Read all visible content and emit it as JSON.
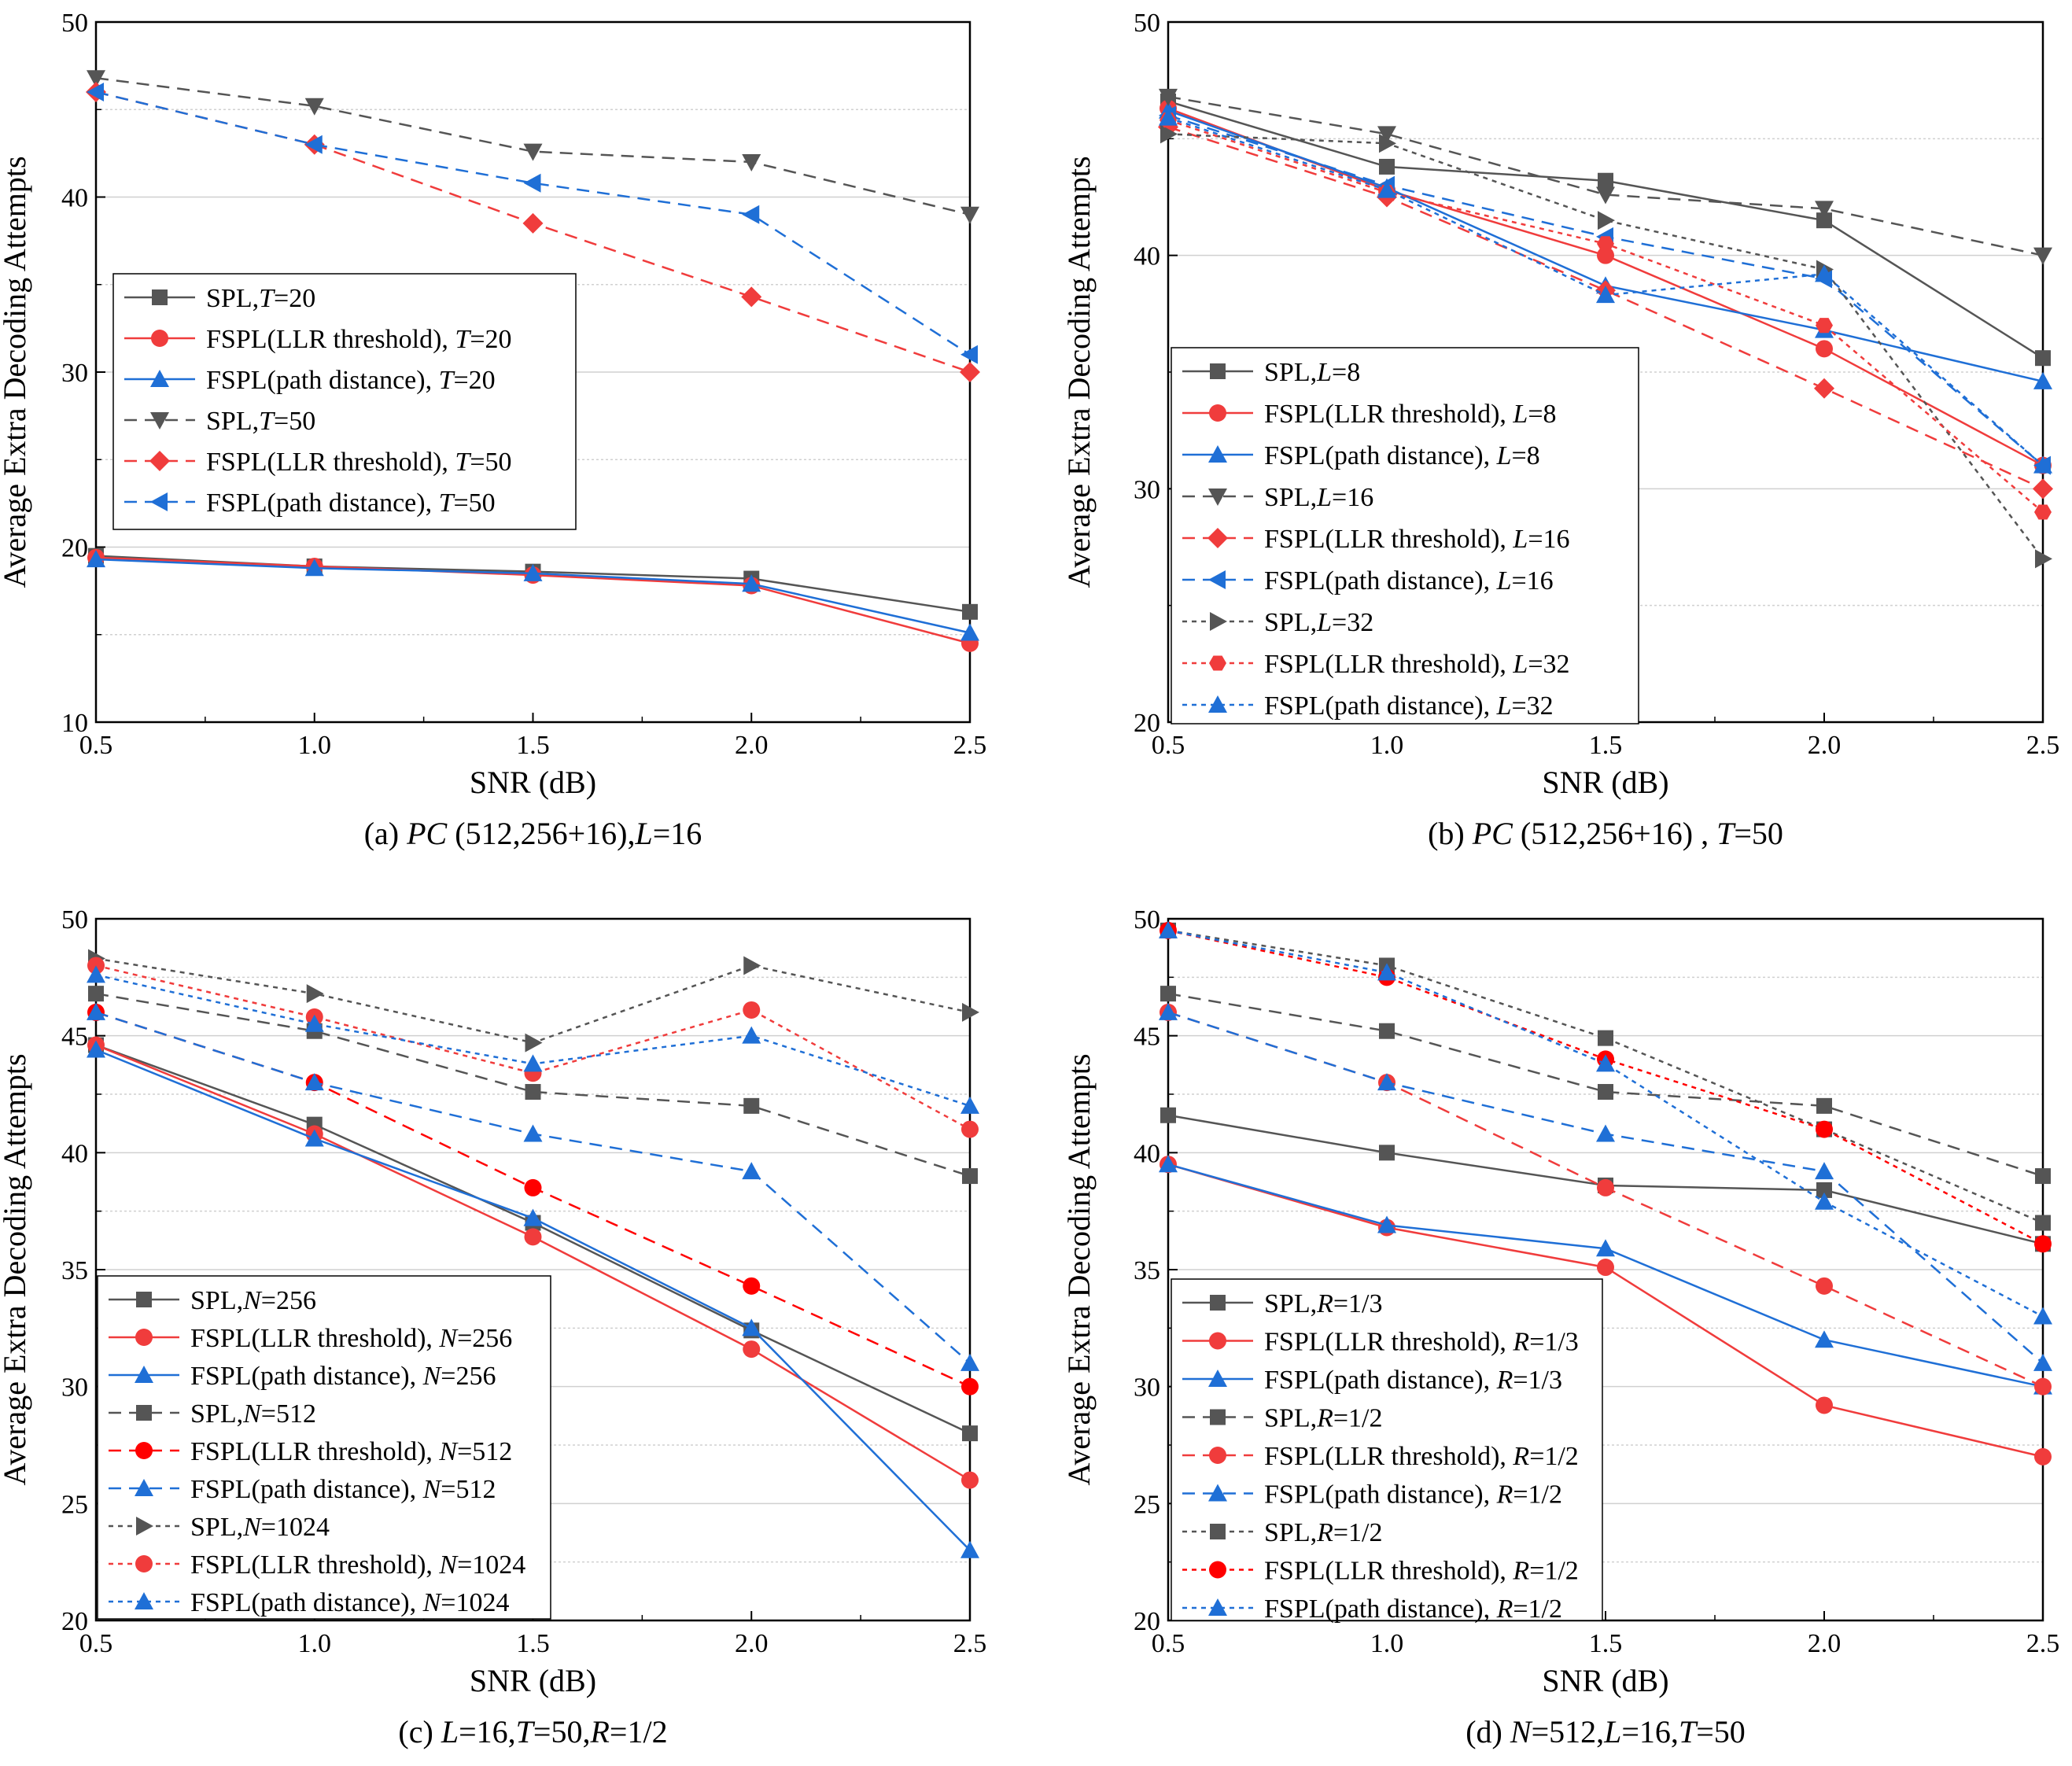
{
  "chart_data": [
    {
      "type": "line",
      "panel": "a",
      "caption": "(a)  PC (512,256+16),L=16",
      "xlabel": "SNR (dB)",
      "ylabel": "Average Extra Decoding Attempts",
      "x": [
        0.5,
        1.0,
        1.5,
        2.0,
        2.5
      ],
      "xlim": [
        0.5,
        2.5
      ],
      "ylim": [
        10,
        50
      ],
      "yticks": [
        10,
        20,
        30,
        40,
        50
      ],
      "xticks": [
        "0.5",
        "1.0",
        "1.5",
        "2.0",
        "2.5"
      ],
      "legend_position": "middle-left",
      "series": [
        {
          "name": "SPL,T=20",
          "color": "#555555",
          "marker": "square",
          "dash": "solid",
          "values": [
            19.5,
            18.9,
            18.6,
            18.2,
            16.3
          ]
        },
        {
          "name": "FSPL(LLR threshold), T=20",
          "color": "#f03c3c",
          "marker": "circle",
          "dash": "solid",
          "values": [
            19.4,
            18.9,
            18.4,
            17.8,
            14.5
          ]
        },
        {
          "name": "FSPL(path distance), T=20",
          "color": "#1f6fd6",
          "marker": "triangle-up",
          "dash": "solid",
          "values": [
            19.3,
            18.8,
            18.5,
            17.9,
            15.1
          ]
        },
        {
          "name": "SPL,T=50",
          "color": "#555555",
          "marker": "triangle-down",
          "dash": "dashed",
          "values": [
            46.8,
            45.2,
            42.6,
            42.0,
            39.0
          ]
        },
        {
          "name": "FSPL(LLR threshold), T=50",
          "color": "#f03c3c",
          "marker": "diamond",
          "dash": "dashed",
          "values": [
            46.0,
            43.0,
            38.5,
            34.3,
            30.0
          ]
        },
        {
          "name": "FSPL(path distance), T=50",
          "color": "#1f6fd6",
          "marker": "triangle-left",
          "dash": "dashed",
          "values": [
            46.0,
            43.0,
            40.8,
            39.0,
            31.0
          ]
        }
      ]
    },
    {
      "type": "line",
      "panel": "b",
      "caption": "(b)  PC (512,256+16) ,  T=50",
      "xlabel": "SNR (dB)",
      "ylabel": "Average Extra Decoding Attempts",
      "x": [
        0.5,
        1.0,
        1.5,
        2.0,
        2.5
      ],
      "xlim": [
        0.5,
        2.5
      ],
      "ylim": [
        20,
        50
      ],
      "yticks": [
        20,
        30,
        40,
        50
      ],
      "xticks": [
        "0.5",
        "1.0",
        "1.5",
        "2.0",
        "2.5"
      ],
      "legend_position": "bottom-left",
      "series": [
        {
          "name": "SPL,L=8",
          "color": "#555555",
          "marker": "square",
          "dash": "solid",
          "values": [
            46.6,
            43.8,
            43.2,
            41.5,
            35.6
          ]
        },
        {
          "name": "FSPL(LLR threshold), L=8",
          "color": "#f03c3c",
          "marker": "circle",
          "dash": "solid",
          "values": [
            46.3,
            42.8,
            40.0,
            36.0,
            31.0
          ]
        },
        {
          "name": "FSPL(path distance), L=8",
          "color": "#1f6fd6",
          "marker": "triangle-up",
          "dash": "solid",
          "values": [
            46.2,
            42.9,
            38.7,
            36.8,
            34.6
          ]
        },
        {
          "name": "SPL,L=16",
          "color": "#555555",
          "marker": "triangle-down",
          "dash": "dashed",
          "values": [
            46.8,
            45.2,
            42.6,
            42.0,
            40.0
          ]
        },
        {
          "name": "FSPL(LLR threshold), L=16",
          "color": "#f03c3c",
          "marker": "diamond",
          "dash": "dashed",
          "values": [
            45.5,
            42.5,
            38.5,
            34.3,
            30.0
          ]
        },
        {
          "name": "FSPL(path distance), L=16",
          "color": "#1f6fd6",
          "marker": "triangle-left",
          "dash": "dashed",
          "values": [
            46.0,
            43.0,
            40.8,
            39.0,
            31.0
          ]
        },
        {
          "name": "SPL,L=32",
          "color": "#555555",
          "marker": "triangle-right",
          "dash": "dotted",
          "values": [
            45.2,
            44.8,
            41.5,
            39.4,
            27.0
          ]
        },
        {
          "name": "FSPL(LLR threshold), L=32",
          "color": "#f03c3c",
          "marker": "hexagon",
          "dash": "dotted",
          "values": [
            45.8,
            42.7,
            40.5,
            37.0,
            29.0
          ]
        },
        {
          "name": "FSPL(path distance), L=32",
          "color": "#1f6fd6",
          "marker": "triangle-up",
          "dash": "dotted",
          "values": [
            45.9,
            42.8,
            38.3,
            39.2,
            31.0
          ]
        }
      ]
    },
    {
      "type": "line",
      "panel": "c",
      "caption": "(c) L=16,T=50,R=1/2",
      "xlabel": "SNR (dB)",
      "ylabel": "Average Extra Decoding Attempts",
      "x": [
        0.5,
        1.0,
        1.5,
        2.0,
        2.5
      ],
      "xlim": [
        0.5,
        2.5
      ],
      "ylim": [
        20,
        50
      ],
      "yticks": [
        20,
        25,
        30,
        35,
        40,
        45,
        50
      ],
      "xticks": [
        "0.5",
        "1.0",
        "1.5",
        "2.0",
        "2.5"
      ],
      "legend_position": "bottom-left",
      "series": [
        {
          "name": "SPL,N=256",
          "color": "#555555",
          "marker": "square",
          "dash": "solid",
          "values": [
            44.6,
            41.2,
            37.0,
            32.4,
            28.0
          ]
        },
        {
          "name": "FSPL(LLR threshold), N=256",
          "color": "#f03c3c",
          "marker": "circle",
          "dash": "solid",
          "values": [
            44.6,
            40.8,
            36.4,
            31.6,
            26.0
          ]
        },
        {
          "name": "FSPL(path distance), N=256",
          "color": "#1f6fd6",
          "marker": "triangle-up",
          "dash": "solid",
          "values": [
            44.4,
            40.6,
            37.2,
            32.5,
            23.0
          ]
        },
        {
          "name": "SPL,N=512",
          "color": "#555555",
          "marker": "square",
          "dash": "dashed",
          "values": [
            46.8,
            45.2,
            42.6,
            42.0,
            39.0
          ]
        },
        {
          "name": "FSPL(LLR threshold), N=512",
          "color": "#ff0000",
          "marker": "circle",
          "dash": "dashed",
          "values": [
            46.0,
            43.0,
            38.5,
            34.3,
            30.0
          ]
        },
        {
          "name": "FSPL(path distance), N=512",
          "color": "#1f6fd6",
          "marker": "triangle-up",
          "dash": "dashed",
          "values": [
            46.0,
            43.0,
            40.8,
            39.2,
            31.0
          ]
        },
        {
          "name": "SPL,N=1024",
          "color": "#555555",
          "marker": "triangle-right",
          "dash": "dotted",
          "values": [
            48.3,
            46.8,
            44.7,
            48.0,
            46.0
          ]
        },
        {
          "name": "FSPL(LLR threshold), N=1024",
          "color": "#f03c3c",
          "marker": "circle",
          "dash": "dotted",
          "values": [
            48.0,
            45.8,
            43.4,
            46.1,
            41.0
          ]
        },
        {
          "name": "FSPL(path distance), N=1024",
          "color": "#1f6fd6",
          "marker": "triangle-up",
          "dash": "dotted",
          "values": [
            47.6,
            45.5,
            43.8,
            45.0,
            42.0
          ]
        }
      ]
    },
    {
      "type": "line",
      "panel": "d",
      "caption": "(d) N=512,L=16,T=50",
      "xlabel": "SNR (dB)",
      "ylabel": "Average Extra Decoding Attempts",
      "x": [
        0.5,
        1.0,
        1.5,
        2.0,
        2.5
      ],
      "xlim": [
        0.5,
        2.5
      ],
      "ylim": [
        20,
        50
      ],
      "yticks": [
        20,
        25,
        30,
        35,
        40,
        45,
        50
      ],
      "xticks": [
        "0.5",
        "1.0",
        "1.5",
        "2.0",
        "2.5"
      ],
      "legend_position": "bottom-left",
      "series": [
        {
          "name": "SPL,R=1/3",
          "color": "#555555",
          "marker": "square",
          "dash": "solid",
          "values": [
            41.6,
            40.0,
            38.6,
            38.4,
            36.1
          ]
        },
        {
          "name": "FSPL(LLR threshold), R=1/3",
          "color": "#f03c3c",
          "marker": "circle",
          "dash": "solid",
          "values": [
            39.5,
            36.8,
            35.1,
            29.2,
            27.0
          ]
        },
        {
          "name": "FSPL(path distance), R=1/3",
          "color": "#1f6fd6",
          "marker": "triangle-up",
          "dash": "solid",
          "values": [
            39.5,
            36.9,
            35.9,
            32.0,
            30.0
          ]
        },
        {
          "name": "SPL,R=1/2",
          "color": "#555555",
          "marker": "square",
          "dash": "dashed",
          "values": [
            46.8,
            45.2,
            42.6,
            42.0,
            39.0
          ]
        },
        {
          "name": "FSPL(LLR threshold), R=1/2",
          "color": "#f03c3c",
          "marker": "circle",
          "dash": "dashed",
          "values": [
            46.0,
            43.0,
            38.5,
            34.3,
            30.0
          ]
        },
        {
          "name": "FSPL(path distance), R=1/2",
          "color": "#1f6fd6",
          "marker": "triangle-up",
          "dash": "dashed",
          "values": [
            46.0,
            43.0,
            40.8,
            39.2,
            31.0
          ]
        },
        {
          "name": "SPL,R=1/2",
          "color": "#555555",
          "marker": "square",
          "dash": "dotted",
          "values": [
            49.5,
            48.0,
            44.9,
            41.0,
            37.0
          ]
        },
        {
          "name": "FSPL(LLR threshold), R=1/2",
          "color": "#ff0000",
          "marker": "circle",
          "dash": "dotted",
          "values": [
            49.5,
            47.5,
            44.0,
            41.0,
            36.1
          ]
        },
        {
          "name": "FSPL(path distance), R=1/2",
          "color": "#1f6fd6",
          "marker": "triangle-up",
          "dash": "dotted",
          "values": [
            49.5,
            47.7,
            43.8,
            37.9,
            33.0
          ]
        }
      ]
    }
  ]
}
